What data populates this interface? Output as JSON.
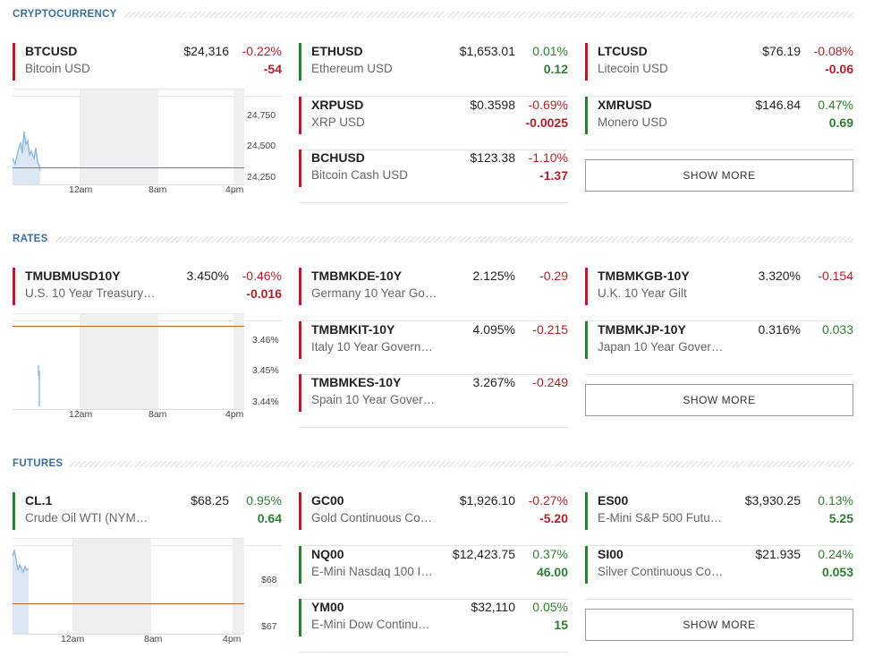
{
  "show_more_label": "SHOW MORE",
  "colors": {
    "negative": "#b0202a",
    "positive": "#2f7d32",
    "header": "#3b6e9e",
    "chart_line": "#8fb8de",
    "reference_line": "#c8632a"
  },
  "sections": [
    {
      "title": "CRYPTOCURRENCY",
      "chart": {
        "x_ticks": [
          "12am",
          "8am",
          "4pm"
        ],
        "y_ticks": [
          "24,750",
          "24,500",
          "24,250"
        ],
        "y_range": [
          24200,
          24950
        ],
        "reference_value": 24370
      },
      "cards": [
        {
          "symbol": "BTCUSD",
          "name": "Bitcoin USD",
          "price": "$24,316",
          "pct": "-0.22%",
          "change": "-54",
          "dir": "neg"
        },
        {
          "symbol": "ETHUSD",
          "name": "Ethereum USD",
          "price": "$1,653.01",
          "pct": "0.01%",
          "change": "0.12",
          "dir": "pos"
        },
        {
          "symbol": "LTCUSD",
          "name": "Litecoin USD",
          "price": "$76.19",
          "pct": "-0.08%",
          "change": "-0.06",
          "dir": "neg"
        },
        {
          "symbol": "XRPUSD",
          "name": "XRP USD",
          "price": "$0.3598",
          "pct": "-0.69%",
          "change": "-0.0025",
          "dir": "neg"
        },
        {
          "symbol": "XMRUSD",
          "name": "Monero USD",
          "price": "$146.84",
          "pct": "0.47%",
          "change": "0.69",
          "dir": "pos"
        },
        {
          "symbol": "BCHUSD",
          "name": "Bitcoin Cash USD",
          "price": "$123.38",
          "pct": "-1.10%",
          "change": "-1.37",
          "dir": "neg"
        }
      ]
    },
    {
      "title": "RATES",
      "chart": {
        "x_ticks": [
          "12am",
          "8am",
          "4pm"
        ],
        "y_ticks": [
          "3.46%",
          "3.45%",
          "3.44%"
        ],
        "y_range": [
          3.435,
          3.47
        ],
        "reference_value": 3.466
      },
      "cards": [
        {
          "symbol": "TMUBMUSD10Y",
          "name": "U.S. 10 Year Treasury…",
          "price": "3.450%",
          "pct": "-0.46%",
          "change": "-0.016",
          "dir": "neg"
        },
        {
          "symbol": "TMBMKDE-10Y",
          "name": "Germany 10 Year Go…",
          "price": "2.125%",
          "pct": "-0.29",
          "change": "",
          "dir": "neg"
        },
        {
          "symbol": "TMBMKGB-10Y",
          "name": "U.K. 10 Year Gilt",
          "price": "3.320%",
          "pct": "-0.154",
          "change": "",
          "dir": "neg"
        },
        {
          "symbol": "TMBMKIT-10Y",
          "name": "Italy 10 Year Govern…",
          "price": "4.095%",
          "pct": "-0.215",
          "change": "",
          "dir": "neg"
        },
        {
          "symbol": "TMBMKJP-10Y",
          "name": "Japan 10 Year Gover…",
          "price": "0.316%",
          "pct": "0.033",
          "change": "",
          "dir": "pos"
        },
        {
          "symbol": "TMBMKES-10Y",
          "name": "Spain 10 Year Gover…",
          "price": "3.267%",
          "pct": "-0.249",
          "change": "",
          "dir": "neg"
        }
      ]
    },
    {
      "title": "FUTURES",
      "chart": {
        "x_ticks": [
          "12am",
          "8am",
          "4pm"
        ],
        "y_ticks": [
          "$68",
          "$67"
        ],
        "y_range": [
          66.7,
          68.9
        ],
        "reference_value": 67.55
      },
      "cards": [
        {
          "symbol": "CL.1",
          "name": "Crude Oil WTI (NYM…",
          "price": "$68.25",
          "pct": "0.95%",
          "change": "0.64",
          "dir": "pos"
        },
        {
          "symbol": "GC00",
          "name": "Gold Continuous Co…",
          "price": "$1,926.10",
          "pct": "-0.27%",
          "change": "-5.20",
          "dir": "neg"
        },
        {
          "symbol": "ES00",
          "name": "E-Mini S&P 500 Futu…",
          "price": "$3,930.25",
          "pct": "0.13%",
          "change": "5.25",
          "dir": "pos"
        },
        {
          "symbol": "NQ00",
          "name": "E-Mini Nasdaq 100 I…",
          "price": "$12,423.75",
          "pct": "0.37%",
          "change": "46.00",
          "dir": "pos"
        },
        {
          "symbol": "SI00",
          "name": "Silver Continuous Co…",
          "price": "$21.935",
          "pct": "0.24%",
          "change": "0.053",
          "dir": "pos"
        },
        {
          "symbol": "YM00",
          "name": "E-Mini Dow Continu…",
          "price": "$32,110",
          "pct": "0.05%",
          "change": "15",
          "dir": "pos"
        }
      ]
    }
  ]
}
